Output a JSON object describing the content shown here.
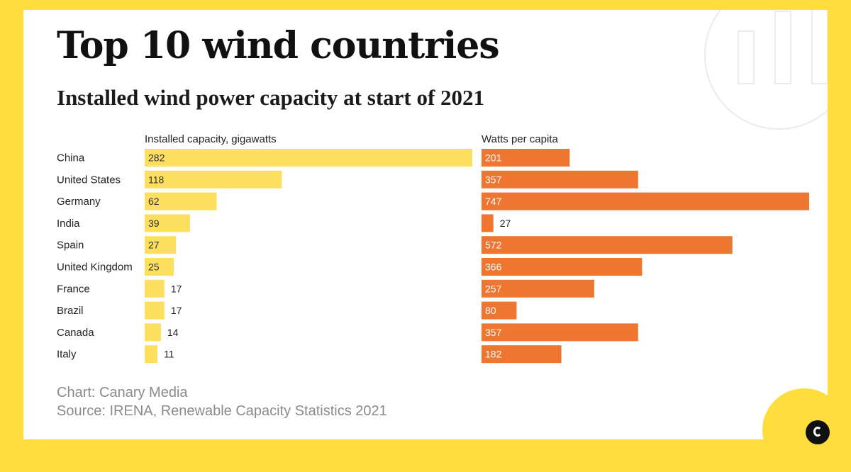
{
  "title": "Top 10 wind countries",
  "subtitle": "Installed wind power capacity at start of 2021",
  "credit": {
    "chart": "Chart: Canary Media",
    "source": "Source: IRENA, Renewable Capacity Statistics 2021"
  },
  "colors": {
    "background": "#FEDD3C",
    "capacity_bar": "#FCDF5E",
    "per_capita_bar": "#EF7630",
    "text": "#222222",
    "credit_text": "#8A8A8A"
  },
  "logo": {
    "icon": "canary-c-logo-icon"
  },
  "chart_data": [
    {
      "type": "bar",
      "orientation": "horizontal",
      "title": "Installed capacity, gigawatts",
      "categories": [
        "China",
        "United States",
        "Germany",
        "India",
        "Spain",
        "United Kingdom",
        "France",
        "Brazil",
        "Canada",
        "Italy"
      ],
      "values": [
        282,
        118,
        62,
        39,
        27,
        25,
        17,
        17,
        14,
        11
      ],
      "xlim": [
        0,
        282
      ],
      "grid": false,
      "color": "#FCDF5E"
    },
    {
      "type": "bar",
      "orientation": "horizontal",
      "title": "Watts per capita",
      "categories": [
        "China",
        "United States",
        "Germany",
        "India",
        "Spain",
        "United Kingdom",
        "France",
        "Brazil",
        "Canada",
        "Italy"
      ],
      "values": [
        201,
        357,
        747,
        27,
        572,
        366,
        257,
        80,
        357,
        182
      ],
      "xlim": [
        0,
        747
      ],
      "grid": false,
      "color": "#EF7630"
    }
  ]
}
